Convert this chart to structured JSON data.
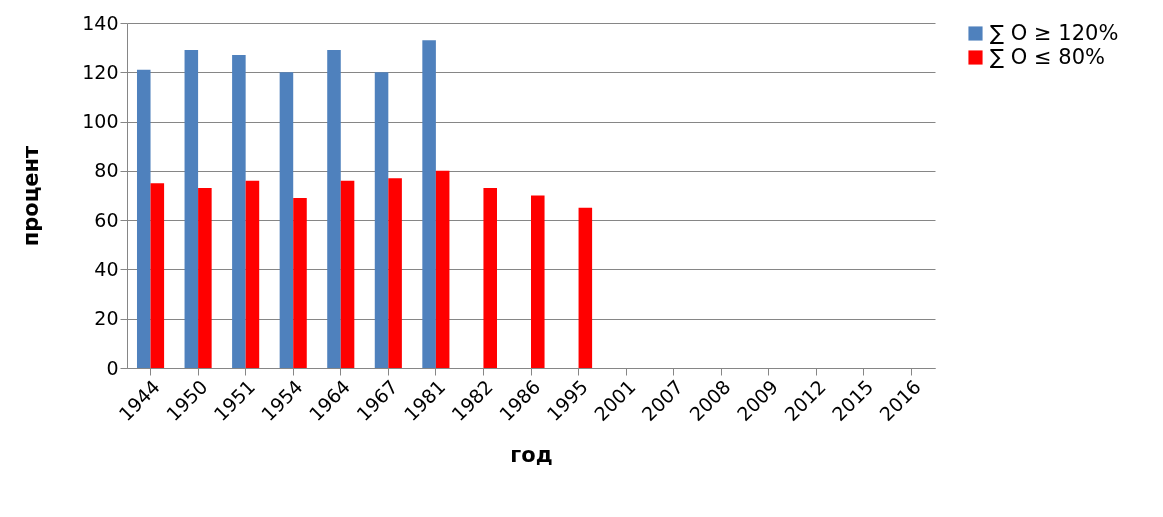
{
  "chart_data": {
    "type": "bar",
    "xlabel": "год",
    "ylabel": "процент",
    "categories": [
      "1944",
      "1950",
      "1951",
      "1954",
      "1964",
      "1967",
      "1981",
      "1982",
      "1986",
      "1995",
      "2001",
      "2007",
      "2008",
      "2009",
      "2012",
      "2015",
      "2016"
    ],
    "series": [
      {
        "name": "∑ O ≥ 120%",
        "color": "#4f81bd",
        "values": [
          121,
          129,
          127,
          120,
          129,
          120,
          133,
          null,
          null,
          null,
          null,
          null,
          null,
          null,
          null,
          null,
          null
        ]
      },
      {
        "name": "∑ O ≤ 80%",
        "color": "#ff0000",
        "values": [
          75,
          73,
          76,
          69,
          76,
          77,
          80,
          73,
          70,
          65,
          null,
          null,
          null,
          null,
          null,
          null,
          null
        ]
      }
    ],
    "ylim": [
      0,
      140
    ],
    "yticks": [
      0,
      20,
      40,
      60,
      80,
      100,
      120,
      140
    ],
    "grid": "y",
    "legend": "right"
  }
}
